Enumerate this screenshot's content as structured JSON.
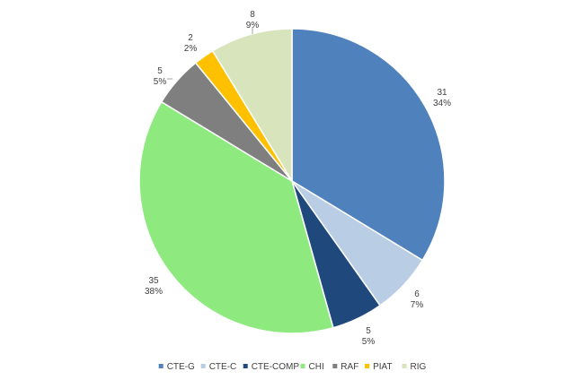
{
  "chart_data": {
    "type": "pie",
    "title": "",
    "categories": [
      "CTE-G",
      "CTE-C",
      "CTE-COMP",
      "CHI",
      "RAF",
      "PIAT",
      "RIG"
    ],
    "values": [
      31,
      6,
      5,
      35,
      5,
      2,
      8
    ],
    "percent_labels": [
      "34%",
      "7%",
      "5%",
      "38%",
      "5%",
      "2%",
      "9%"
    ],
    "colors": [
      "#4f81bd",
      "#b9cde5",
      "#1f497d",
      "#8eea7f",
      "#7f7f7f",
      "#ffc000",
      "#d8e4bc"
    ],
    "legend": {
      "position": "bottom",
      "entries": [
        "CTE-G",
        "CTE-C",
        "CTE-COMP",
        "CHI",
        "RAF",
        "PIAT",
        "RIG"
      ]
    },
    "start_angle": "12 o'clock",
    "direction": "clockwise"
  }
}
